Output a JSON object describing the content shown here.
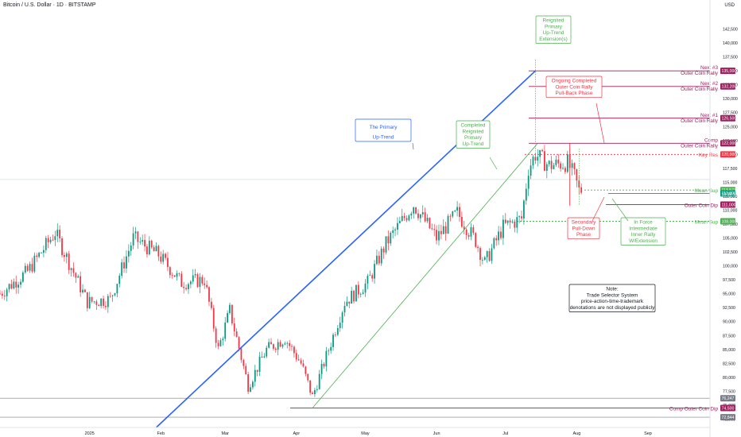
{
  "header": {
    "title": "Bitcoin / U.S. Dollar · 1D · BITSTAMP",
    "currency": "USD"
  },
  "chart_data": {
    "type": "candlestick",
    "y_axis": {
      "range": [
        71000,
        146000
      ],
      "ticks": [
        "142,500",
        "140,000",
        "137,500",
        "135,000",
        "132,500",
        "130,000",
        "127,500",
        "125,000",
        "122,500",
        "120,000",
        "117,500",
        "115,000",
        "112,500",
        "110,000",
        "107,500",
        "105,000",
        "102,500",
        "100,000",
        "97,500",
        "95,000",
        "92,500",
        "90,000",
        "87,500",
        "85,000",
        "82,500",
        "80,000",
        "77,500",
        "75,000",
        "72,500"
      ]
    },
    "x_axis": {
      "labels": [
        "2025",
        "Feb",
        "Mar",
        "Apr",
        "May",
        "Jun",
        "Jul",
        "Aug",
        "Sep"
      ],
      "dates": [
        "2025-01-01",
        "2025-02-01",
        "2025-03-01",
        "2025-04-01",
        "2025-05-01",
        "2025-06-01",
        "2025-07-01",
        "2025-08-01",
        "2025-09-01"
      ],
      "range": [
        "2024-11-23",
        "2025-09-28"
      ]
    },
    "colors": {
      "up": "#089981",
      "down": "#f23645",
      "primary_trend": "#2962ff",
      "channel": "#4caf50",
      "resistance": "#9c1f5e",
      "key": "#e91e63"
    },
    "anchors": [
      [
        "2024-11-23",
        95000
      ],
      [
        "2024-12-05",
        99000
      ],
      [
        "2024-12-17",
        106000
      ],
      [
        "2024-12-31",
        93500
      ],
      [
        "2025-01-10",
        94000
      ],
      [
        "2025-01-20",
        105000
      ],
      [
        "2025-01-31",
        102000
      ],
      [
        "2025-02-10",
        97000
      ],
      [
        "2025-02-20",
        97500
      ],
      [
        "2025-02-26",
        85000
      ],
      [
        "2025-03-03",
        92000
      ],
      [
        "2025-03-11",
        78500
      ],
      [
        "2025-03-19",
        85000
      ],
      [
        "2025-03-27",
        87000
      ],
      [
        "2025-04-03",
        82500
      ],
      [
        "2025-04-08",
        76500
      ],
      [
        "2025-04-22",
        93500
      ],
      [
        "2025-05-02",
        97000
      ],
      [
        "2025-05-10",
        104000
      ],
      [
        "2025-05-22",
        111000
      ],
      [
        "2025-06-01",
        105000
      ],
      [
        "2025-06-10",
        109500
      ],
      [
        "2025-06-18",
        104500
      ],
      [
        "2025-06-22",
        100500
      ],
      [
        "2025-06-30",
        107000
      ],
      [
        "2025-07-08",
        108500
      ],
      [
        "2025-07-11",
        117500
      ],
      [
        "2025-07-14",
        120000
      ],
      [
        "2025-07-20",
        118000
      ],
      [
        "2025-07-28",
        118500
      ],
      [
        "2025-07-31",
        116000
      ],
      [
        "2025-08-02",
        113500
      ],
      [
        "2025-08-03",
        113600
      ]
    ],
    "price_levels": [
      {
        "value": 135000,
        "label": "135,000",
        "text1": "Next #3",
        "text2": "Outer Coin Rally",
        "color": "#9c1f5e"
      },
      {
        "value": 132200,
        "label": "132,200",
        "text1": "Next #2",
        "text2": "Outer Coin Rally",
        "color": "#9c1f5e"
      },
      {
        "value": 126500,
        "label": "126,500",
        "text1": "Next #1",
        "text2": "Outer Coin Rally",
        "color": "#9c1f5e"
      },
      {
        "value": 122000,
        "label": "122,000",
        "text1": "Comp",
        "text2": "Outer Coin Rally",
        "color": "#9c1f5e"
      },
      {
        "value": 120000,
        "label": "120,000",
        "text1": "Key Res",
        "text2": "",
        "color": "#f23645"
      },
      {
        "value": 113600,
        "label": "113,571",
        "text1": "Mean Sup",
        "text2": "",
        "color": "#4caf50"
      },
      {
        "value": 113000,
        "label": "113,000",
        "text1": "",
        "text2": "",
        "color": "#089981"
      },
      {
        "value": 111000,
        "label": "111,000",
        "text1": "Outer Coin Dip",
        "text2": "",
        "color": "#9c1f5e"
      },
      {
        "value": 108000,
        "label": "108,000",
        "text1": "Mean Sup",
        "text2": "",
        "color": "#4caf50"
      },
      {
        "value": 76247,
        "label": "76,247",
        "text1": "",
        "text2": "",
        "color": "#787b86"
      },
      {
        "value": 74500,
        "label": "74,500",
        "text1": "Comp Outer Coin Dip",
        "text2": "",
        "color": "#9c1f5e"
      },
      {
        "value": 72844,
        "label": "72,844",
        "text1": "",
        "text2": "",
        "color": "#787b86"
      }
    ],
    "current_price": {
      "value": "113,571",
      "countdown": "13:35:11"
    },
    "annotations": {
      "primary_uptrend": "The Primary Up-Trend",
      "completed": "Completed Reignited Primary Up-Trend",
      "reignited": "Reignited Primary Up-Trend Extension(s)",
      "ongoing": "Ongoing Completed Outer Coin Rally Pull-Back Phase",
      "secondary": "Secondary Pull-Down Phase",
      "inforce": "In Force Intermediate Inner Rally W/Extension",
      "note": [
        "Note:",
        "Trade Selector System",
        "price-action-time-trademark",
        "denotations are not displayed publicly"
      ]
    }
  }
}
